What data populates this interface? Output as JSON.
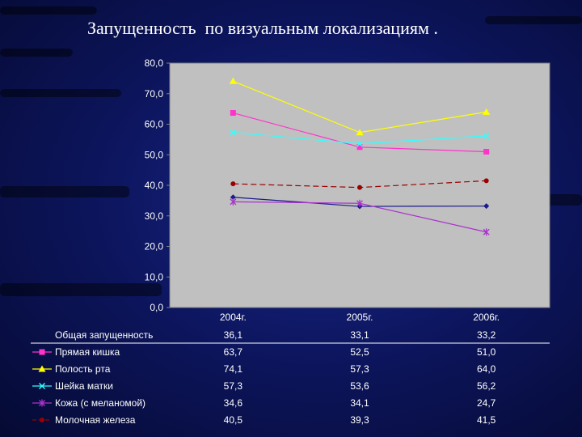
{
  "title": "Запущенность  по визуальным локализациям .",
  "colors": {
    "plot_bg": "#c0c0c0",
    "background": "#0d1660"
  },
  "chart_data": {
    "type": "line",
    "title": "",
    "xlabel": "",
    "ylabel": "",
    "categories": [
      "2004г.",
      "2005г.",
      "2006г."
    ],
    "ylim": [
      0,
      80
    ],
    "yticks": [
      "0,0",
      "10,0",
      "20,0",
      "30,0",
      "40,0",
      "50,0",
      "60,0",
      "70,0",
      "80,0"
    ],
    "grid": false,
    "legend": "table-below",
    "series": [
      {
        "name": "Общая запущенность",
        "color": "#1a1a8c",
        "marker": "diamond",
        "dash": "solid",
        "values": [
          36.1,
          33.1,
          33.2
        ],
        "labels": [
          "36,1",
          "33,1",
          "33,2"
        ]
      },
      {
        "name": "Прямая кишка",
        "color": "#ff33cc",
        "marker": "square",
        "dash": "solid",
        "values": [
          63.7,
          52.5,
          51.0
        ],
        "labels": [
          "63,7",
          "52,5",
          "51,0"
        ]
      },
      {
        "name": "Полость рта",
        "color": "#ffff00",
        "marker": "triangle",
        "dash": "solid",
        "values": [
          74.1,
          57.3,
          64.0
        ],
        "labels": [
          "74,1",
          "57,3",
          "64,0"
        ]
      },
      {
        "name": "Шейка матки",
        "color": "#33ffff",
        "marker": "x",
        "dash": "solid",
        "values": [
          57.3,
          53.6,
          56.2
        ],
        "labels": [
          "57,3",
          "53,6",
          "56,2"
        ]
      },
      {
        "name": "Кожа (с меланомой)",
        "color": "#aa33cc",
        "marker": "star",
        "dash": "solid",
        "values": [
          34.6,
          34.1,
          24.7
        ],
        "labels": [
          "34,6",
          "34,1",
          "24,7"
        ]
      },
      {
        "name": "Молочная железа",
        "color": "#990000",
        "marker": "circle",
        "dash": "dashed",
        "values": [
          40.5,
          39.3,
          41.5
        ],
        "labels": [
          "40,5",
          "39,3",
          "41,5"
        ]
      }
    ]
  }
}
